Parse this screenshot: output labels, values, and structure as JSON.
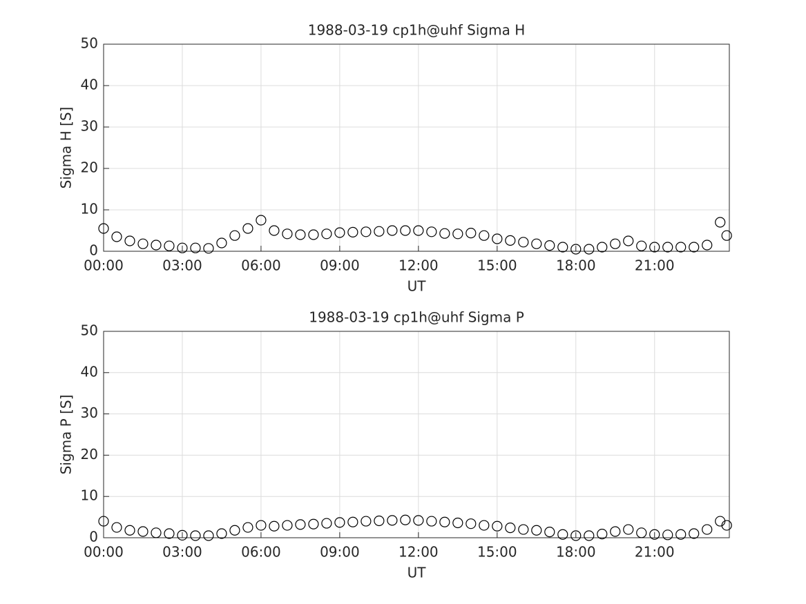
{
  "chart_data": [
    {
      "type": "scatter",
      "title": "1988-03-19  cp1h@uhf Sigma H",
      "xlabel": "UT",
      "ylabel": "Sigma H [S]",
      "x": [
        0,
        0.5,
        1,
        1.5,
        2,
        2.5,
        3,
        3.5,
        4,
        4.5,
        5,
        5.5,
        6,
        6.5,
        7,
        7.5,
        8,
        8.5,
        9,
        9.5,
        10,
        10.5,
        11,
        11.5,
        12,
        12.5,
        13,
        13.5,
        14,
        14.5,
        15,
        15.5,
        16,
        16.5,
        17,
        17.5,
        18,
        18.5,
        19,
        19.5,
        20,
        20.5,
        21,
        21.5,
        22,
        22.5,
        23,
        23.5,
        23.75
      ],
      "values": [
        5.5,
        3.5,
        2.5,
        1.8,
        1.5,
        1.3,
        0.8,
        0.8,
        0.7,
        2,
        3.8,
        5.5,
        7.5,
        5,
        4.2,
        4,
        4,
        4.2,
        4.5,
        4.6,
        4.7,
        4.8,
        5,
        5,
        5,
        4.7,
        4.3,
        4.2,
        4.4,
        3.8,
        3,
        2.6,
        2.2,
        1.8,
        1.4,
        1,
        0.5,
        0.5,
        1,
        1.8,
        2.5,
        1.3,
        1,
        1,
        1,
        1,
        1.5,
        7,
        3.8
      ],
      "color": "#000000",
      "marker": "circle",
      "grid": true,
      "xlim": [
        0,
        23.85
      ],
      "ylim": [
        0,
        50
      ],
      "xticks": [
        {
          "value": 0,
          "label": "00:00"
        },
        {
          "value": 3,
          "label": "03:00"
        },
        {
          "value": 6,
          "label": "06:00"
        },
        {
          "value": 9,
          "label": "09:00"
        },
        {
          "value": 12,
          "label": "12:00"
        },
        {
          "value": 15,
          "label": "15:00"
        },
        {
          "value": 18,
          "label": "18:00"
        },
        {
          "value": 21,
          "label": "21:00"
        }
      ],
      "yticks": [
        0,
        10,
        20,
        30,
        40,
        50
      ]
    },
    {
      "type": "scatter",
      "title": "1988-03-19  cp1h@uhf Sigma P",
      "xlabel": "UT",
      "ylabel": "Sigma P [S]",
      "x": [
        0,
        0.5,
        1,
        1.5,
        2,
        2.5,
        3,
        3.5,
        4,
        4.5,
        5,
        5.5,
        6,
        6.5,
        7,
        7.5,
        8,
        8.5,
        9,
        9.5,
        10,
        10.5,
        11,
        11.5,
        12,
        12.5,
        13,
        13.5,
        14,
        14.5,
        15,
        15.5,
        16,
        16.5,
        17,
        17.5,
        18,
        18.5,
        19,
        19.5,
        20,
        20.5,
        21,
        21.5,
        22,
        22.5,
        23,
        23.5,
        23.75
      ],
      "values": [
        4,
        2.5,
        1.8,
        1.5,
        1.2,
        1,
        0.6,
        0.5,
        0.5,
        1,
        1.8,
        2.5,
        3,
        2.8,
        3,
        3.2,
        3.3,
        3.5,
        3.7,
        3.8,
        4,
        4.1,
        4.2,
        4.3,
        4.2,
        4,
        3.8,
        3.6,
        3.4,
        3,
        2.8,
        2.4,
        2,
        1.8,
        1.4,
        0.8,
        0.5,
        0.5,
        0.9,
        1.5,
        2,
        1.2,
        0.8,
        0.7,
        0.8,
        1,
        2,
        4,
        3
      ],
      "color": "#000000",
      "marker": "circle",
      "grid": true,
      "xlim": [
        0,
        23.85
      ],
      "ylim": [
        0,
        50
      ],
      "xticks": [
        {
          "value": 0,
          "label": "00:00"
        },
        {
          "value": 3,
          "label": "03:00"
        },
        {
          "value": 6,
          "label": "06:00"
        },
        {
          "value": 9,
          "label": "09:00"
        },
        {
          "value": 12,
          "label": "12:00"
        },
        {
          "value": 15,
          "label": "15:00"
        },
        {
          "value": 18,
          "label": "18:00"
        },
        {
          "value": 21,
          "label": "21:00"
        }
      ],
      "yticks": [
        0,
        10,
        20,
        30,
        40,
        50
      ]
    }
  ]
}
